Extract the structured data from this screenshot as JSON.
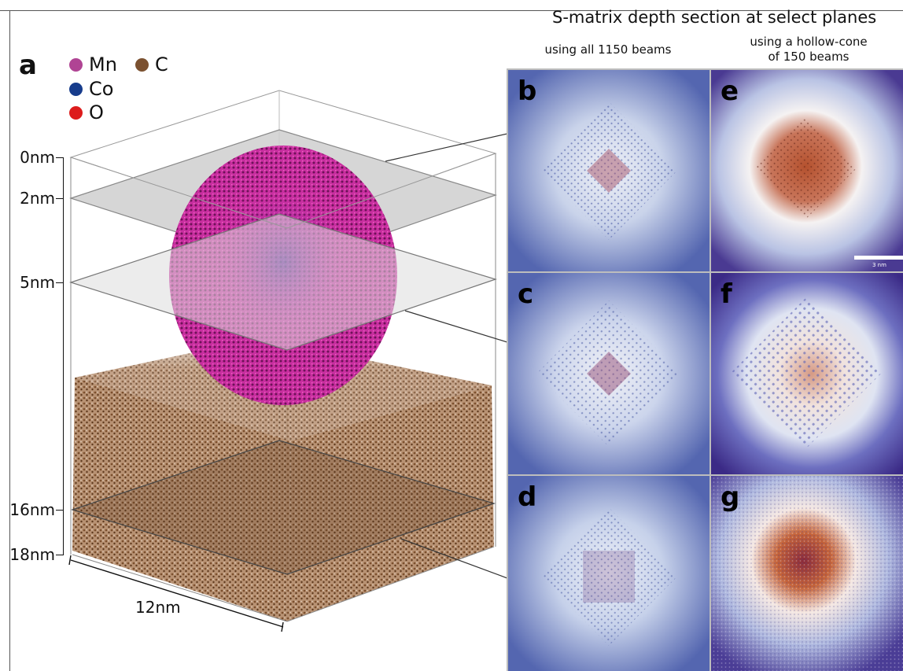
{
  "figure": {
    "panel_a_letter": "a",
    "legend": [
      {
        "label": "Mn",
        "color": "#b04494"
      },
      {
        "label": "C",
        "color": "#7b5130"
      },
      {
        "label": "Co",
        "color": "#173c8c"
      },
      {
        "label": "O",
        "color": "#dd1c1c"
      }
    ],
    "depth_labels": [
      "0nm",
      "2nm",
      "5nm",
      "16nm",
      "18nm"
    ],
    "width_label": "12nm",
    "title": "S-matrix depth section at select planes",
    "column_headers": {
      "left": "using all 1150 beams",
      "right_line1": "using a hollow-cone",
      "right_line2": "of 150 beams"
    },
    "panels": [
      {
        "letter": "b",
        "style": "all-beams"
      },
      {
        "letter": "c",
        "style": "all-beams"
      },
      {
        "letter": "d",
        "style": "all-beams"
      },
      {
        "letter": "e",
        "style": "hollow-cone"
      },
      {
        "letter": "f",
        "style": "hollow-cone"
      },
      {
        "letter": "g",
        "style": "hollow-cone"
      }
    ],
    "scale_bar_label": "3 nm",
    "colors": {
      "carbon": "#8a5c3a",
      "manganese": "#c2359a",
      "plane": "#d6d6d6",
      "map_low": "#4a5aa8",
      "map_mid": "#f2f2f2",
      "map_high": "#b5522f"
    }
  }
}
